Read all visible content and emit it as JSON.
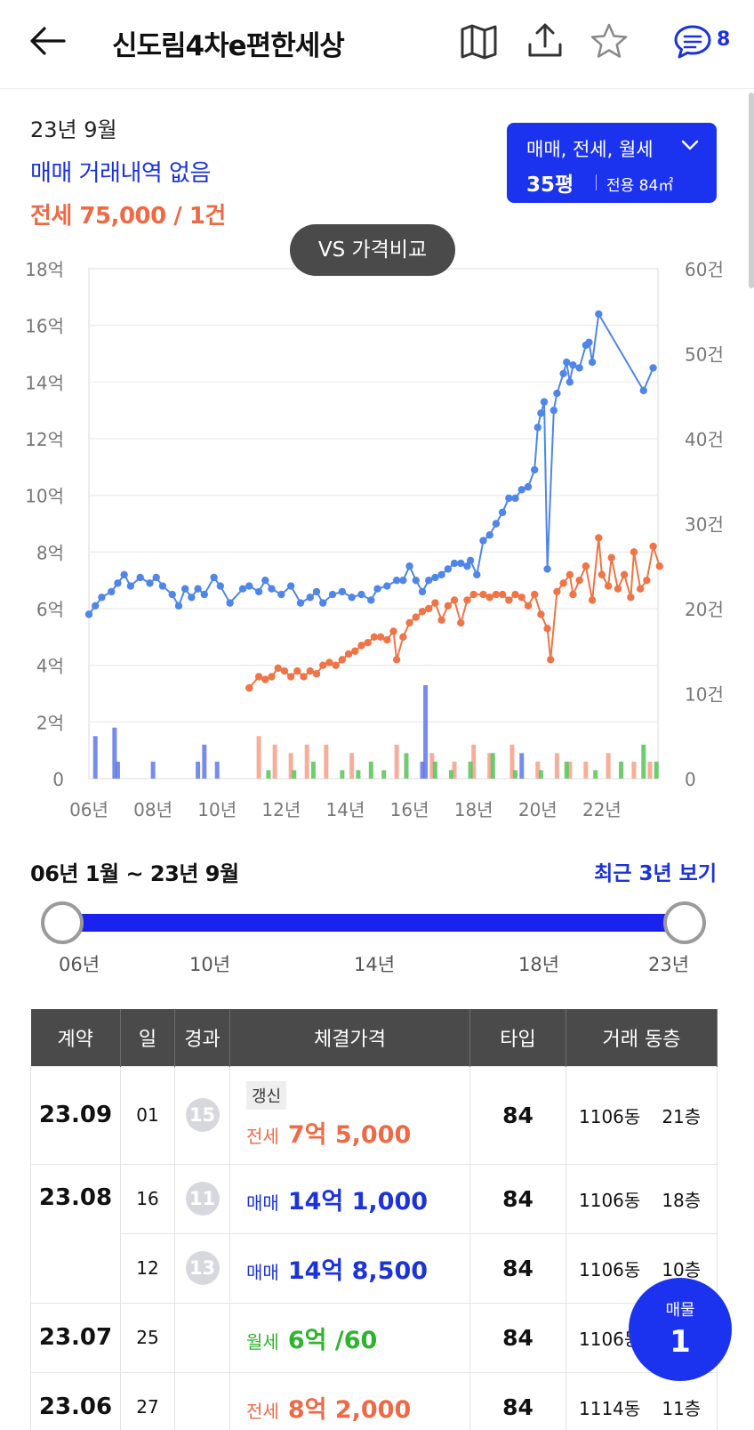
{
  "header": {
    "title": "신도림4차e편한세상",
    "comment_count": "8"
  },
  "summary": {
    "year_month": "23년 9월",
    "sale_status": "매매 거래내역 없음",
    "jeonse_status": "전세 75,000 / 1건"
  },
  "filter": {
    "types": "매매, 전세, 월세",
    "pyeong": "35평",
    "area": "전용 84㎡"
  },
  "vs_button": "VS 가격비교",
  "colors": {
    "sale": "#4f86e8",
    "jeonse": "#ef7446",
    "monthly": "#3fbf3f",
    "accent": "#1b33ee"
  },
  "chart_data": {
    "type": "line",
    "x_ticks": [
      "06년",
      "08년",
      "10년",
      "12년",
      "14년",
      "16년",
      "18년",
      "20년",
      "22년"
    ],
    "x_range": [
      2006,
      2023.75
    ],
    "y_left_ticks": [
      "0",
      "2억",
      "4억",
      "6억",
      "8억",
      "10억",
      "12억",
      "14억",
      "16억",
      "18억"
    ],
    "y_left_range": [
      0,
      18
    ],
    "y_right_ticks": [
      "0",
      "10건",
      "20건",
      "30건",
      "40건",
      "50건",
      "60건"
    ],
    "y_right_range": [
      0,
      60
    ],
    "series": [
      {
        "key": "sale",
        "points": [
          [
            2006.0,
            5.8
          ],
          [
            2006.2,
            6.1
          ],
          [
            2006.4,
            6.4
          ],
          [
            2006.7,
            6.6
          ],
          [
            2006.9,
            6.9
          ],
          [
            2007.1,
            7.2
          ],
          [
            2007.3,
            6.8
          ],
          [
            2007.6,
            7.1
          ],
          [
            2007.9,
            6.9
          ],
          [
            2008.1,
            7.1
          ],
          [
            2008.3,
            6.8
          ],
          [
            2008.6,
            6.5
          ],
          [
            2008.8,
            6.1
          ],
          [
            2009.0,
            6.7
          ],
          [
            2009.2,
            6.4
          ],
          [
            2009.4,
            6.7
          ],
          [
            2009.6,
            6.5
          ],
          [
            2009.9,
            7.1
          ],
          [
            2010.1,
            6.8
          ],
          [
            2010.4,
            6.2
          ],
          [
            2010.8,
            6.7
          ],
          [
            2011.0,
            6.8
          ],
          [
            2011.3,
            6.6
          ],
          [
            2011.5,
            7.0
          ],
          [
            2011.7,
            6.7
          ],
          [
            2012.0,
            6.5
          ],
          [
            2012.3,
            6.8
          ],
          [
            2012.6,
            6.2
          ],
          [
            2012.9,
            6.4
          ],
          [
            2013.1,
            6.6
          ],
          [
            2013.3,
            6.2
          ],
          [
            2013.6,
            6.5
          ],
          [
            2013.9,
            6.6
          ],
          [
            2014.2,
            6.4
          ],
          [
            2014.5,
            6.5
          ],
          [
            2014.8,
            6.3
          ],
          [
            2015.0,
            6.7
          ],
          [
            2015.3,
            6.8
          ],
          [
            2015.6,
            7.0
          ],
          [
            2015.8,
            7.0
          ],
          [
            2016.0,
            7.5
          ],
          [
            2016.2,
            7.0
          ],
          [
            2016.4,
            6.6
          ],
          [
            2016.6,
            7.0
          ],
          [
            2016.8,
            7.1
          ],
          [
            2017.0,
            7.2
          ],
          [
            2017.2,
            7.4
          ],
          [
            2017.4,
            7.6
          ],
          [
            2017.6,
            7.6
          ],
          [
            2017.8,
            7.5
          ],
          [
            2017.9,
            7.7
          ],
          [
            2018.1,
            7.2
          ],
          [
            2018.3,
            8.4
          ],
          [
            2018.5,
            8.6
          ],
          [
            2018.7,
            9.0
          ],
          [
            2018.9,
            9.4
          ],
          [
            2019.1,
            9.9
          ],
          [
            2019.3,
            9.9
          ],
          [
            2019.5,
            10.2
          ],
          [
            2019.7,
            10.3
          ],
          [
            2019.9,
            10.9
          ],
          [
            2020.0,
            12.4
          ],
          [
            2020.1,
            12.9
          ],
          [
            2020.2,
            13.3
          ],
          [
            2020.3,
            7.4
          ],
          [
            2020.5,
            13.0
          ],
          [
            2020.6,
            13.6
          ],
          [
            2020.8,
            14.3
          ],
          [
            2020.9,
            14.7
          ],
          [
            2021.0,
            14.0
          ],
          [
            2021.1,
            14.6
          ],
          [
            2021.3,
            14.5
          ],
          [
            2021.5,
            15.3
          ],
          [
            2021.6,
            15.4
          ],
          [
            2021.7,
            14.7
          ],
          [
            2021.9,
            16.4
          ],
          [
            2023.3,
            13.7
          ],
          [
            2023.6,
            14.5
          ]
        ]
      },
      {
        "key": "jeonse",
        "points": [
          [
            2011.0,
            3.2
          ],
          [
            2011.3,
            3.6
          ],
          [
            2011.5,
            3.5
          ],
          [
            2011.7,
            3.6
          ],
          [
            2011.9,
            3.9
          ],
          [
            2012.1,
            3.8
          ],
          [
            2012.3,
            3.6
          ],
          [
            2012.5,
            3.8
          ],
          [
            2012.7,
            3.6
          ],
          [
            2012.9,
            3.8
          ],
          [
            2013.1,
            3.7
          ],
          [
            2013.3,
            4.0
          ],
          [
            2013.5,
            4.1
          ],
          [
            2013.7,
            4.0
          ],
          [
            2013.9,
            4.2
          ],
          [
            2014.1,
            4.4
          ],
          [
            2014.3,
            4.5
          ],
          [
            2014.5,
            4.7
          ],
          [
            2014.7,
            4.8
          ],
          [
            2014.9,
            5.0
          ],
          [
            2015.1,
            5.0
          ],
          [
            2015.3,
            4.9
          ],
          [
            2015.5,
            5.2
          ],
          [
            2015.6,
            4.2
          ],
          [
            2015.8,
            5.0
          ],
          [
            2016.0,
            5.5
          ],
          [
            2016.2,
            5.7
          ],
          [
            2016.4,
            5.9
          ],
          [
            2016.6,
            6.0
          ],
          [
            2016.8,
            6.2
          ],
          [
            2017.0,
            5.6
          ],
          [
            2017.2,
            6.1
          ],
          [
            2017.4,
            6.3
          ],
          [
            2017.6,
            5.5
          ],
          [
            2017.8,
            6.3
          ],
          [
            2018.0,
            6.5
          ],
          [
            2018.3,
            6.5
          ],
          [
            2018.5,
            6.4
          ],
          [
            2018.7,
            6.5
          ],
          [
            2018.9,
            6.5
          ],
          [
            2019.1,
            6.3
          ],
          [
            2019.3,
            6.5
          ],
          [
            2019.5,
            6.4
          ],
          [
            2019.7,
            6.1
          ],
          [
            2019.9,
            6.5
          ],
          [
            2020.1,
            5.8
          ],
          [
            2020.3,
            5.3
          ],
          [
            2020.4,
            4.2
          ],
          [
            2020.6,
            6.6
          ],
          [
            2020.8,
            6.9
          ],
          [
            2021.0,
            7.2
          ],
          [
            2021.1,
            6.5
          ],
          [
            2021.3,
            7.0
          ],
          [
            2021.5,
            7.5
          ],
          [
            2021.7,
            6.3
          ],
          [
            2021.9,
            8.5
          ],
          [
            2022.0,
            7.2
          ],
          [
            2022.2,
            6.8
          ],
          [
            2022.3,
            7.8
          ],
          [
            2022.5,
            6.7
          ],
          [
            2022.7,
            7.2
          ],
          [
            2022.9,
            6.4
          ],
          [
            2023.0,
            8.0
          ],
          [
            2023.2,
            6.7
          ],
          [
            2023.4,
            7.0
          ],
          [
            2023.6,
            8.2
          ],
          [
            2023.8,
            7.5
          ]
        ]
      }
    ],
    "volume_bars": {
      "sale": [
        [
          2006.2,
          5
        ],
        [
          2006.8,
          6
        ],
        [
          2006.9,
          2
        ],
        [
          2008.0,
          2
        ],
        [
          2009.4,
          2
        ],
        [
          2009.6,
          4
        ],
        [
          2010.0,
          2
        ],
        [
          2016.4,
          2
        ],
        [
          2016.5,
          11
        ],
        [
          2019.5,
          3
        ]
      ],
      "jeonse": [
        [
          2011.3,
          5
        ],
        [
          2011.8,
          4
        ],
        [
          2012.3,
          3
        ],
        [
          2012.8,
          4
        ],
        [
          2013.4,
          4
        ],
        [
          2014.2,
          3
        ],
        [
          2015.6,
          4
        ],
        [
          2016.7,
          3
        ],
        [
          2017.4,
          2
        ],
        [
          2018.0,
          4
        ],
        [
          2018.5,
          3
        ],
        [
          2019.2,
          4
        ],
        [
          2020.0,
          2
        ],
        [
          2020.6,
          3
        ],
        [
          2021.0,
          2
        ],
        [
          2021.5,
          2
        ],
        [
          2022.2,
          3
        ],
        [
          2023.0,
          2
        ],
        [
          2023.5,
          2
        ]
      ],
      "monthly": [
        [
          2011.6,
          1
        ],
        [
          2012.4,
          1
        ],
        [
          2013.0,
          2
        ],
        [
          2013.9,
          1
        ],
        [
          2014.4,
          1
        ],
        [
          2014.8,
          2
        ],
        [
          2015.2,
          1
        ],
        [
          2015.9,
          3
        ],
        [
          2016.8,
          2
        ],
        [
          2017.3,
          1
        ],
        [
          2017.9,
          2
        ],
        [
          2018.6,
          3
        ],
        [
          2019.3,
          1
        ],
        [
          2020.1,
          1
        ],
        [
          2020.9,
          2
        ],
        [
          2021.8,
          1
        ],
        [
          2022.6,
          2
        ],
        [
          2023.3,
          4
        ],
        [
          2023.7,
          2
        ]
      ]
    }
  },
  "range": {
    "label": "06년 1월 ~ 23년 9월",
    "recent_link": "최근 3년 보기",
    "ticks": [
      "06년",
      "10년",
      "14년",
      "18년",
      "23년"
    ],
    "selection_fraction": [
      0.0,
      1.0
    ]
  },
  "table": {
    "headers": [
      "계약",
      "일",
      "경과",
      "체결가격",
      "타입",
      "거래 동층"
    ],
    "rows": [
      {
        "month": "23.09",
        "day": "01",
        "elapsed": "15",
        "tag": "갱신",
        "kind": "전세",
        "kind_color": "#ef6a44",
        "price": "7억 5,000",
        "type": "84",
        "dong": "1106동",
        "floor": "21층"
      },
      {
        "month": "23.08",
        "day": "16",
        "elapsed": "11",
        "tag": "",
        "kind": "매매",
        "kind_color": "#1c33d9",
        "price": "14억 1,000",
        "type": "84",
        "dong": "1106동",
        "floor": "18층"
      },
      {
        "month": "",
        "day": "12",
        "elapsed": "13",
        "tag": "",
        "kind": "매매",
        "kind_color": "#1c33d9",
        "price": "14억 8,500",
        "type": "84",
        "dong": "1106동",
        "floor": "10층"
      },
      {
        "month": "23.07",
        "day": "25",
        "elapsed": "",
        "tag": "",
        "kind": "월세",
        "kind_color": "#2bb52b",
        "price": "6억 /60",
        "type": "84",
        "dong": "1106동",
        "floor": ""
      },
      {
        "month": "23.06",
        "day": "27",
        "elapsed": "",
        "tag": "",
        "kind": "전세",
        "kind_color": "#ef6a44",
        "price": "8억 2,000",
        "type": "84",
        "dong": "1114동",
        "floor": "11층"
      }
    ]
  },
  "floating": {
    "label": "매물",
    "count": "1"
  }
}
